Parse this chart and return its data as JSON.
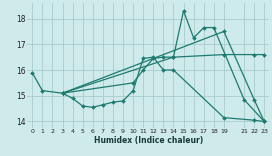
{
  "xlabel": "Humidex (Indice chaleur)",
  "background_color": "#ceeaea",
  "grid_color": "#aacccc",
  "line_color": "#1e7b70",
  "xlim": [
    -0.5,
    23.5
  ],
  "ylim": [
    13.75,
    18.6
  ],
  "xticks": [
    0,
    1,
    2,
    3,
    4,
    5,
    6,
    7,
    8,
    9,
    10,
    11,
    12,
    13,
    14,
    15,
    16,
    17,
    18,
    19,
    21,
    22,
    23
  ],
  "yticks": [
    14,
    15,
    16,
    17,
    18
  ],
  "series": [
    {
      "x": [
        0,
        1,
        3,
        4,
        5,
        6,
        7,
        8,
        9,
        10,
        11,
        12,
        13,
        14,
        19,
        22,
        23
      ],
      "y": [
        15.9,
        15.2,
        15.1,
        14.9,
        14.6,
        14.55,
        14.65,
        14.75,
        14.8,
        15.2,
        16.45,
        16.5,
        16.0,
        16.0,
        14.15,
        14.05,
        14.0
      ]
    },
    {
      "x": [
        3,
        10,
        11,
        12,
        13,
        14,
        19,
        22,
        23
      ],
      "y": [
        15.1,
        15.5,
        16.0,
        16.45,
        16.5,
        16.5,
        16.6,
        16.6,
        16.6
      ]
    },
    {
      "x": [
        3,
        14,
        15,
        16,
        17,
        18,
        21,
        23
      ],
      "y": [
        15.1,
        16.5,
        18.3,
        17.25,
        17.65,
        17.65,
        14.85,
        14.0
      ]
    },
    {
      "x": [
        3,
        19,
        22,
        23
      ],
      "y": [
        15.1,
        17.5,
        14.85,
        14.0
      ]
    }
  ]
}
